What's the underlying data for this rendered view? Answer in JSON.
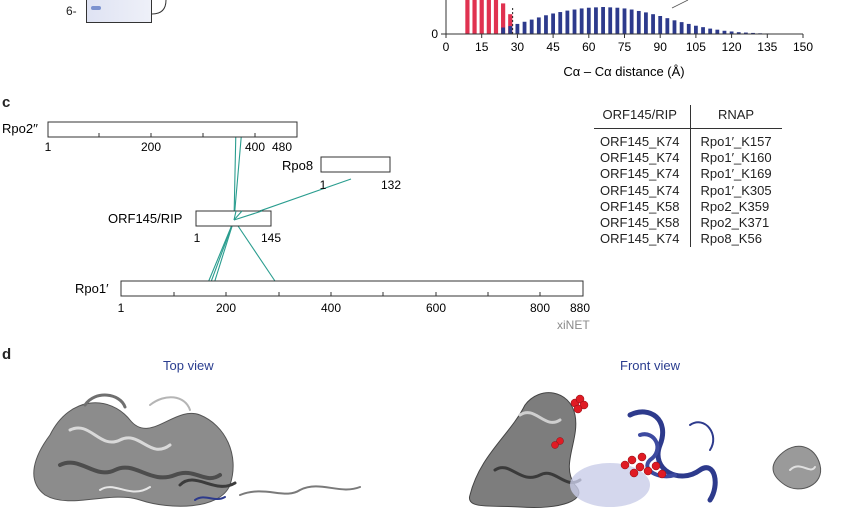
{
  "panel_c": {
    "letter": "c"
  },
  "panel_d": {
    "letter": "d",
    "top_view_label": "Top view",
    "front_view_label": "Front view"
  },
  "gel": {
    "marker_label": "6-"
  },
  "histogram": {
    "xlabel": "Cα – Cα distance (Å)",
    "y_tick_zero": "0",
    "x_ticks": [
      "0",
      "15",
      "30",
      "45",
      "60",
      "75",
      "90",
      "105",
      "120",
      "135",
      "150"
    ],
    "colors": {
      "observed": "#e03250",
      "random": "#2d3a8c"
    }
  },
  "chart_data": {
    "type": "bar",
    "xlabel": "Cα – Cα distance (Å)",
    "ylabel": "",
    "xlim": [
      0,
      150
    ],
    "x_ticks": [
      0,
      15,
      30,
      45,
      60,
      75,
      90,
      105,
      120,
      135,
      150
    ],
    "series": [
      {
        "color": "#e03250",
        "x": [
          9,
          12,
          15,
          18,
          21,
          24,
          27
        ],
        "values": [
          1.0,
          1.0,
          1.0,
          1.0,
          1.0,
          0.85,
          0.55
        ]
      },
      {
        "color": "#2d3a8c",
        "x": [
          24,
          27,
          30,
          33,
          36,
          39,
          42,
          45,
          48,
          51,
          54,
          57,
          60,
          63,
          66,
          69,
          72,
          75,
          78,
          81,
          84,
          87,
          90,
          93,
          96,
          99,
          102,
          105,
          108,
          111,
          114,
          117,
          120,
          123,
          126,
          129,
          132,
          135,
          138,
          141,
          144
        ],
        "values": [
          0.18,
          0.22,
          0.28,
          0.34,
          0.4,
          0.46,
          0.52,
          0.57,
          0.61,
          0.65,
          0.68,
          0.71,
          0.73,
          0.74,
          0.75,
          0.74,
          0.73,
          0.71,
          0.68,
          0.64,
          0.6,
          0.55,
          0.5,
          0.44,
          0.38,
          0.33,
          0.28,
          0.23,
          0.19,
          0.15,
          0.12,
          0.09,
          0.07,
          0.05,
          0.04,
          0.03,
          0.02,
          0.015,
          0.01,
          0.008,
          0.005
        ]
      }
    ]
  },
  "xinet": {
    "label": "xiNET",
    "proteins": [
      {
        "name": "Rpo2′′",
        "start_label": "1",
        "end_label": "480",
        "ticks": [
          "200",
          "400"
        ]
      },
      {
        "name": "Rpo8",
        "start_label": "1",
        "end_label": "132",
        "ticks": []
      },
      {
        "name": "ORF145/RIP",
        "start_label": "1",
        "end_label": "145",
        "ticks": []
      },
      {
        "name": "Rpo1′",
        "start_label": "1",
        "end_label": "880",
        "ticks": [
          "200",
          "400",
          "600",
          "800"
        ]
      }
    ],
    "link_color": "#2a9d8f"
  },
  "crosslinks": {
    "headers": [
      "ORF145/RIP",
      "RNAP"
    ],
    "rows": [
      [
        "ORF145_K74",
        "Rpo1′_K157"
      ],
      [
        "ORF145_K74",
        "Rpo1′_K160"
      ],
      [
        "ORF145_K74",
        "Rpo1′_K169"
      ],
      [
        "ORF145_K74",
        "Rpo1′_K305"
      ],
      [
        "ORF145_K58",
        "Rpo2_K359"
      ],
      [
        "ORF145_K58",
        "Rpo2_K371"
      ],
      [
        "ORF145_K74",
        "Rpo8_K56"
      ]
    ]
  }
}
